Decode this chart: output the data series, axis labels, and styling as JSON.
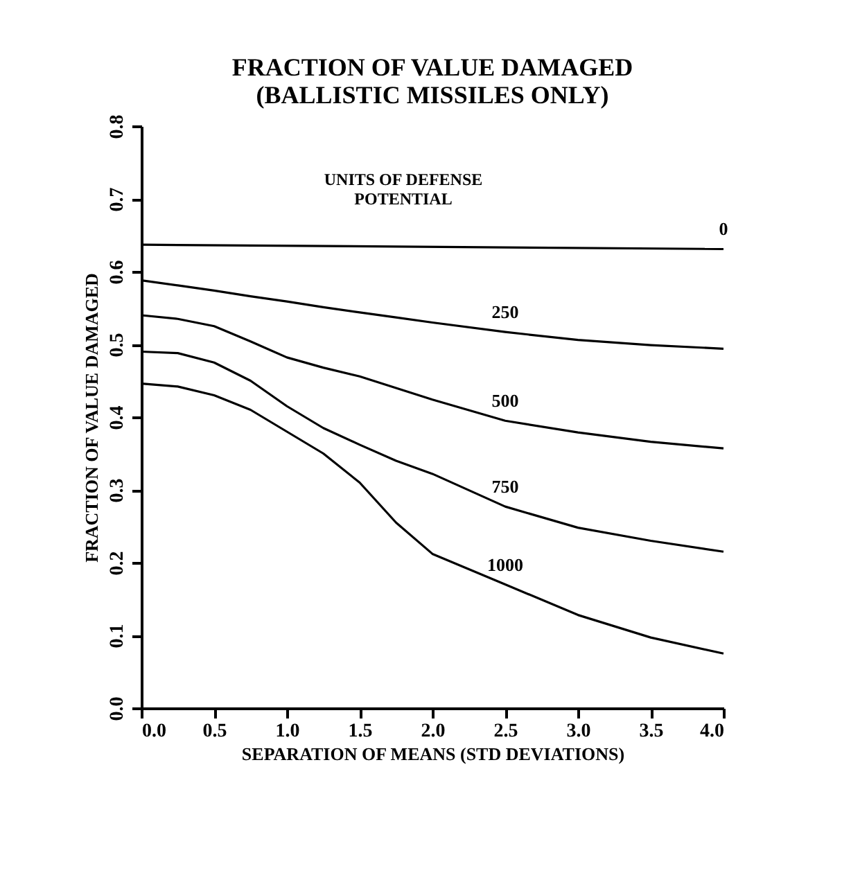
{
  "chart_data": {
    "type": "line",
    "title": "FRACTION OF VALUE DAMAGED\n(BALLISTIC MISSILES ONLY)",
    "xlabel": "SEPARATION OF MEANS (STD DEVIATIONS)",
    "ylabel": "FRACTION OF VALUE DAMAGED",
    "legend_title": "UNITS OF DEFENSE\nPOTENTIAL",
    "x": [
      0,
      0.25,
      0.5,
      0.75,
      1,
      1.25,
      1.5,
      1.75,
      2,
      2.5,
      3,
      3.5,
      4
    ],
    "series": [
      {
        "name": "0",
        "color": "#000000",
        "x": [
          0,
          4
        ],
        "values": [
          0.637,
          0.631
        ]
      },
      {
        "name": "250",
        "color": "#000000",
        "values": [
          0.588,
          0.581,
          0.574,
          0.566,
          0.559,
          0.551,
          0.544,
          0.537,
          0.53,
          0.517,
          0.506,
          0.499,
          0.494
        ]
      },
      {
        "name": "500",
        "color": "#000000",
        "values": [
          0.54,
          0.535,
          0.525,
          0.504,
          0.482,
          0.468,
          0.456,
          0.44,
          0.424,
          0.395,
          0.379,
          0.366,
          0.357
        ]
      },
      {
        "name": "750",
        "color": "#000000",
        "values": [
          0.49,
          0.488,
          0.475,
          0.45,
          0.415,
          0.385,
          0.362,
          0.34,
          0.322,
          0.277,
          0.248,
          0.23,
          0.215
        ]
      },
      {
        "name": "1000",
        "color": "#000000",
        "values": [
          0.446,
          0.442,
          0.43,
          0.41,
          0.38,
          0.35,
          0.31,
          0.255,
          0.212,
          0.17,
          0.128,
          0.097,
          0.075
        ]
      }
    ],
    "xlim": [
      0,
      4
    ],
    "ylim": [
      0,
      0.8
    ],
    "xticks": [
      {
        "value": 0,
        "label": "0.0"
      },
      0.5,
      {
        "value": 1,
        "label": "1.0"
      },
      1.5,
      {
        "value": 2,
        "label": "2.0"
      },
      2.5,
      {
        "value": 3,
        "label": "3.0"
      },
      3.5,
      {
        "value": 4,
        "label": "4.0"
      }
    ],
    "yticks": [
      {
        "value": 0,
        "label": "0.0"
      },
      0.1,
      0.2,
      0.3,
      0.4,
      0.5,
      0.6,
      0.7,
      0.8
    ],
    "grid": false,
    "legend": false,
    "marker": "none",
    "line_style": "solid"
  }
}
